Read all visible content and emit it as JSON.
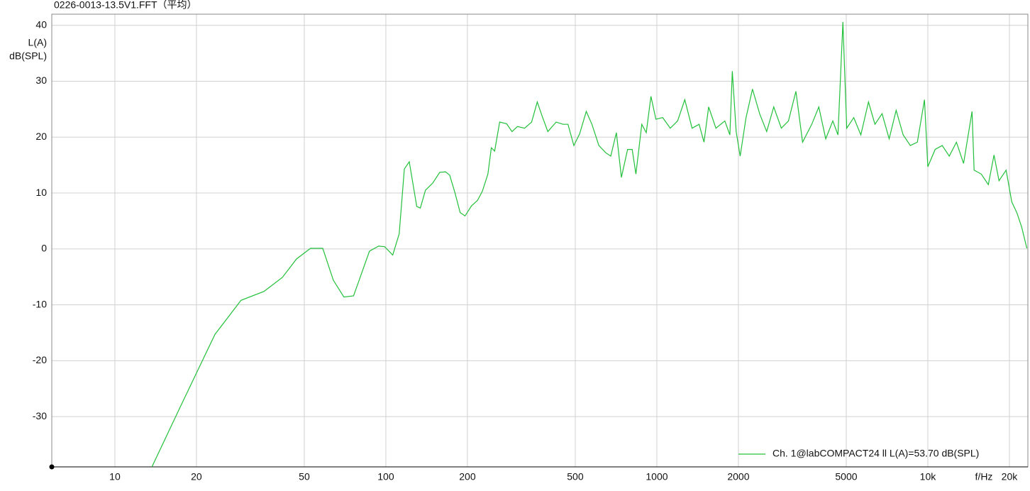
{
  "chart_data": {
    "type": "line",
    "title": "0226-0013-13.5V1.FFT（平均）",
    "ylabel": [
      "L(A)",
      "dB(SPL)"
    ],
    "xlabel": "f/Hz",
    "xscale": "log",
    "grid": true,
    "legend": "lower right",
    "xlim": [
      5.85,
      23400
    ],
    "ylim": [
      -39,
      42
    ],
    "xticks": [
      10,
      20,
      50,
      100,
      200,
      500,
      1000,
      2000,
      5000,
      {
        "value": 10000,
        "label": "10k"
      },
      {
        "value": 20000,
        "label": "20k"
      }
    ],
    "yticks": [
      -30,
      -20,
      -10,
      0,
      10,
      20,
      30,
      40
    ],
    "x": [
      13.7,
      17.3,
      23.4,
      29.2,
      35.5,
      41.5,
      46.8,
      52.7,
      58.5,
      64,
      70,
      76,
      87,
      94,
      99,
      106,
      112,
      117,
      122,
      130,
      134,
      140,
      149,
      158,
      166,
      172,
      180,
      188,
      196,
      207,
      218,
      227,
      238,
      245,
      252,
      263,
      279,
      292,
      306,
      325,
      345,
      362,
      377,
      396,
      425,
      451,
      470,
      494,
      519,
      549,
      576,
      611,
      648,
      676,
      709,
      740,
      780,
      811,
      837,
      880,
      914,
      951,
      992,
      1051,
      1121,
      1193,
      1268,
      1349,
      1432,
      1493,
      1553,
      1652,
      1782,
      1860,
      1899,
      1962,
      2030,
      2134,
      2254,
      2395,
      2543,
      2700,
      2880,
      3060,
      3260,
      3450,
      3730,
      3960,
      4200,
      4460,
      4660,
      4860,
      5020,
      5330,
      5660,
      6040,
      6380,
      6780,
      7200,
      7640,
      8110,
      8620,
      9150,
      9720,
      10000,
      10640,
      11300,
      12000,
      12750,
      13550,
      14560,
      14820,
      15740,
      16720,
      17550,
      18310,
      19450,
      20410,
      21300,
      22200,
      23200
    ],
    "series": [
      {
        "name": "Ch. 1@labCOMPACT24 ll L(A)=53.70 dB(SPL)",
        "color": "#22c03a",
        "values": [
          -39,
          -28.6,
          -15.3,
          -9.2,
          -7.6,
          -5.1,
          -1.8,
          0.1,
          0.1,
          -5.6,
          -8.6,
          -8.4,
          -0.4,
          0.5,
          0.4,
          -1.1,
          2.7,
          14.3,
          15.6,
          7.6,
          7.3,
          10.5,
          11.8,
          13.7,
          13.8,
          13.2,
          10,
          6.5,
          5.9,
          7.7,
          8.7,
          10.3,
          13.4,
          18.1,
          17.5,
          22.7,
          22.4,
          21,
          21.9,
          21.6,
          22.7,
          26.3,
          23.8,
          21,
          22.7,
          22.3,
          22.3,
          18.5,
          20.6,
          24.6,
          22.3,
          18.5,
          17.2,
          16.6,
          20.8,
          12.8,
          17.8,
          17.8,
          13.4,
          22.3,
          20.8,
          27.3,
          23.2,
          23.5,
          21.6,
          22.9,
          26.7,
          21.6,
          22.3,
          19.1,
          25.4,
          21.6,
          22.9,
          20.4,
          31.8,
          21,
          16.6,
          23.5,
          28.6,
          24.2,
          21,
          25.4,
          21.6,
          22.9,
          28.2,
          19.1,
          22.3,
          25.4,
          19.7,
          22.9,
          20.4,
          40.6,
          21.6,
          23.5,
          20.4,
          26.3,
          22.3,
          24.2,
          19.7,
          24.8,
          20.4,
          18.5,
          19.1,
          26.7,
          14.7,
          17.8,
          18.5,
          16.6,
          19.1,
          15.3,
          24.6,
          14.1,
          13.4,
          11.5,
          16.8,
          12.2,
          14.1,
          8.4,
          6.5,
          3.9,
          0.1
        ]
      }
    ]
  }
}
